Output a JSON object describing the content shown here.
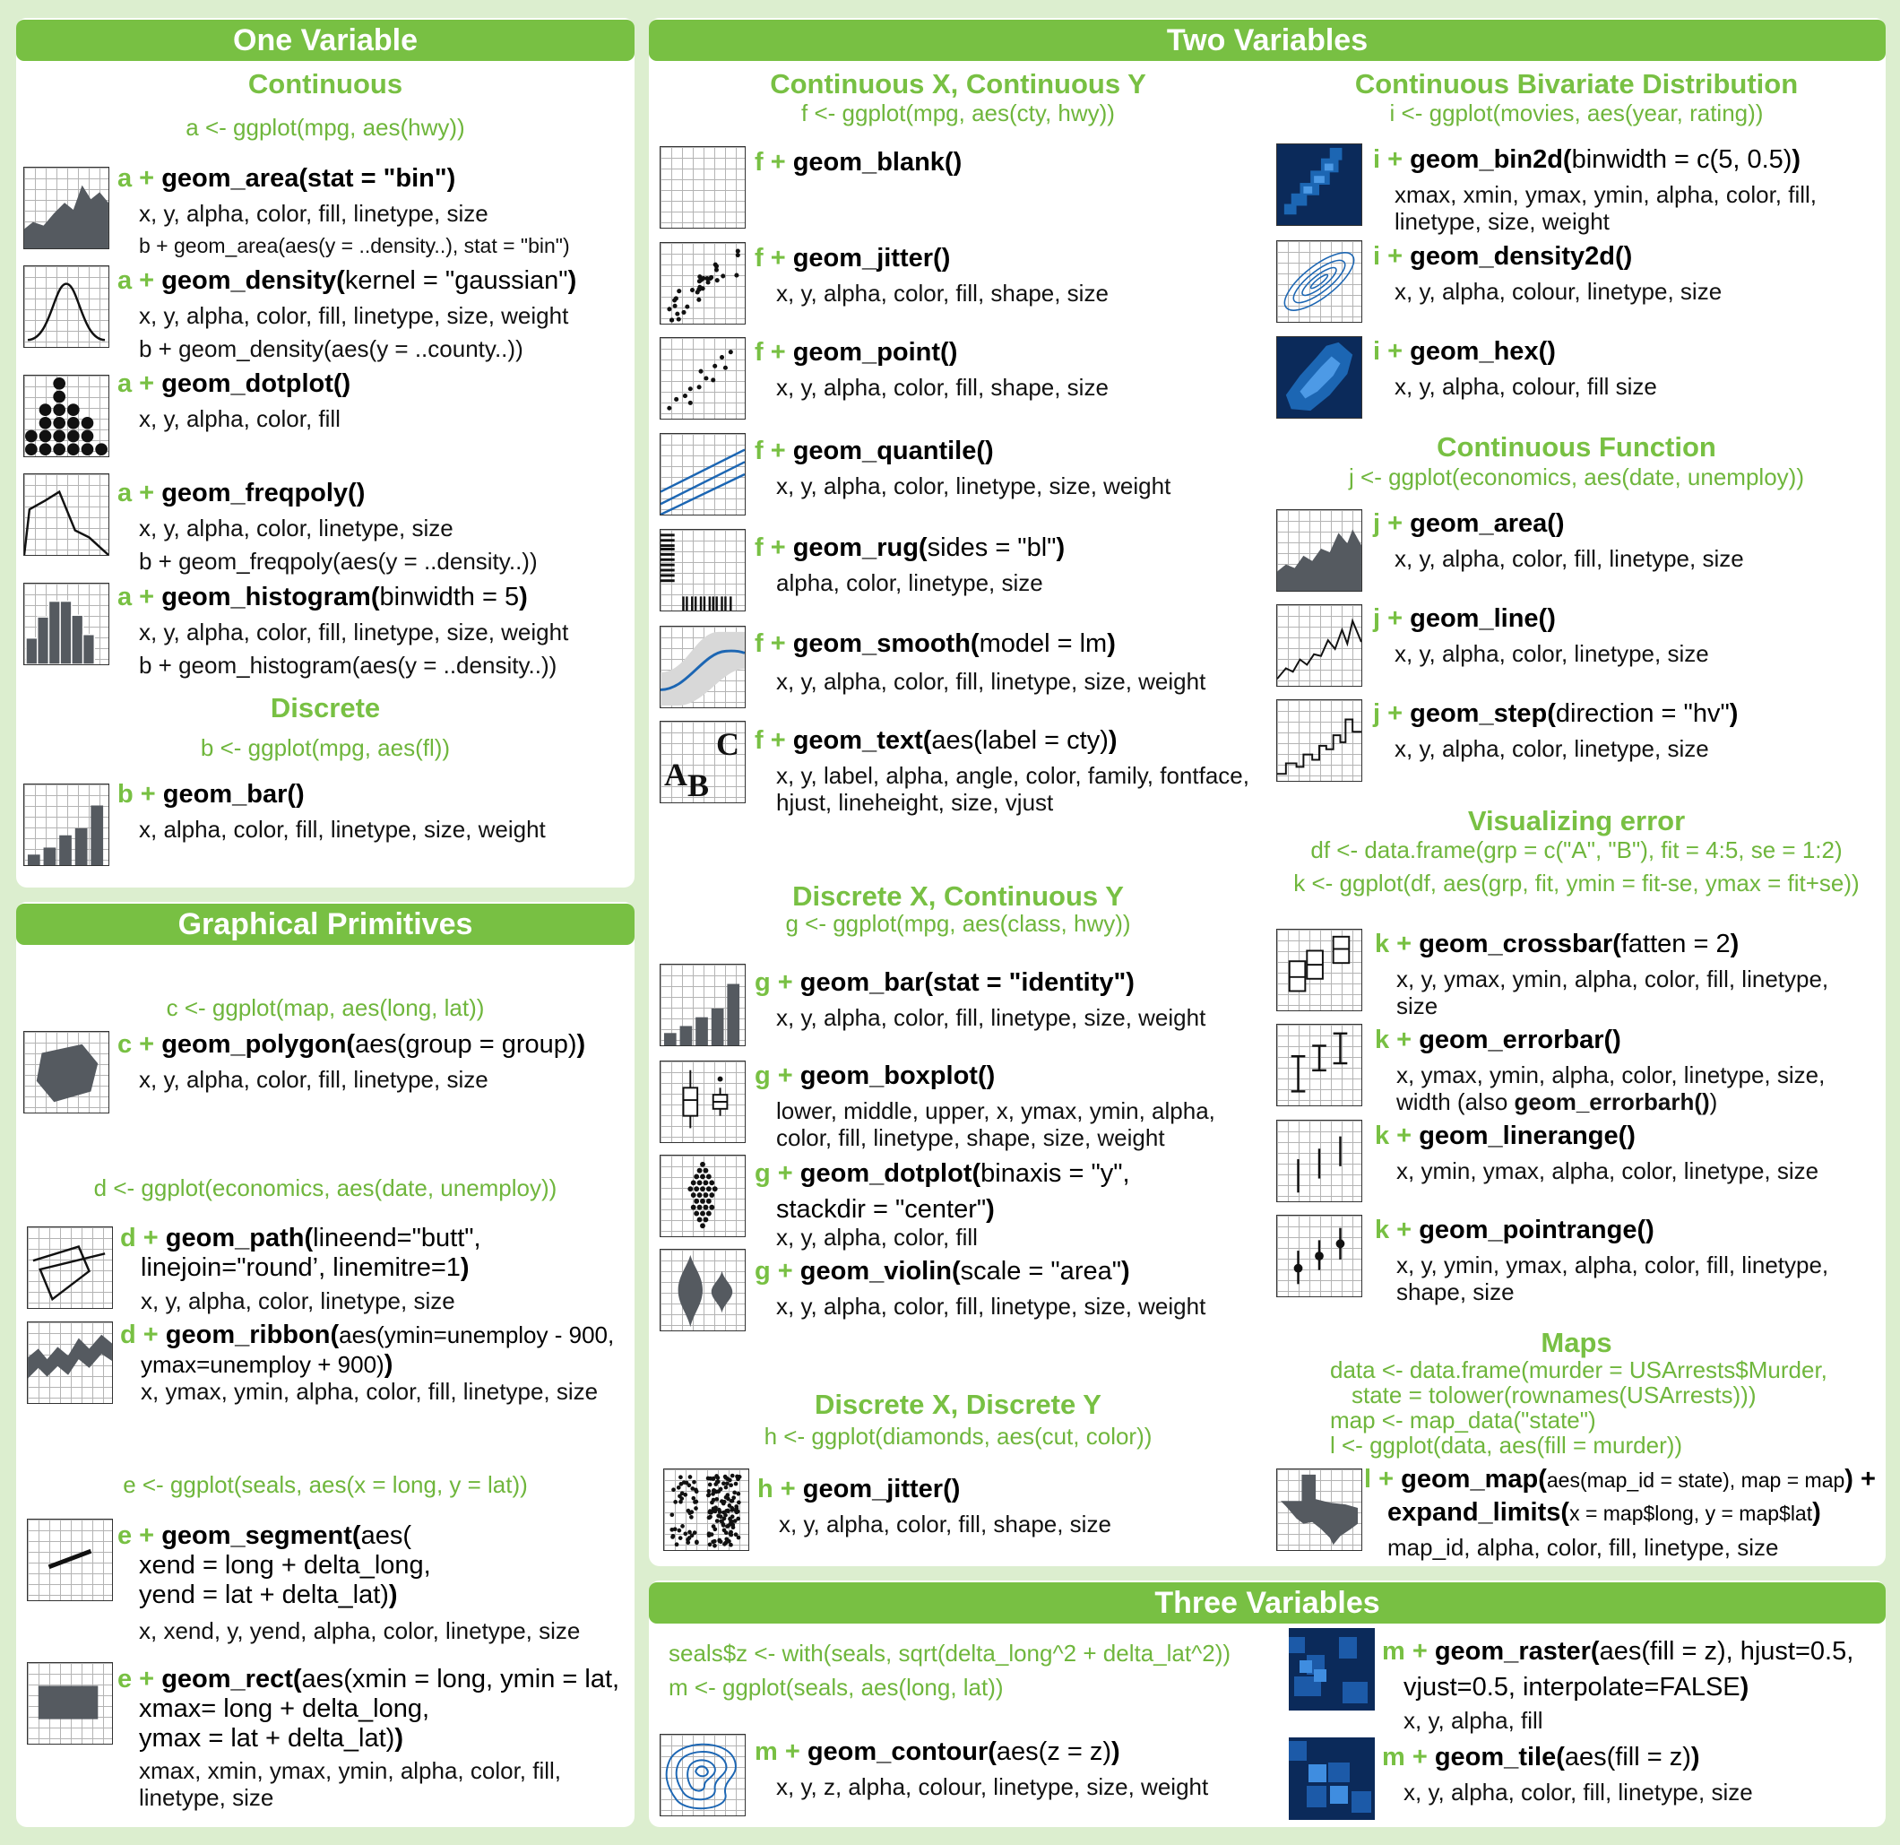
{
  "headers": {
    "one": "One Variable",
    "two": "Two Variables",
    "graph": "Graphical Primitives",
    "three": "Three Variables"
  },
  "one": {
    "cont_title": "Continuous",
    "cont_code": "a <- ggplot(mpg, aes(hwy))",
    "area": {
      "v": "a +",
      "f": "geom_area(stat = \"bin\")",
      "args": "x, y, alpha, color, fill, linetype, size",
      "ex": "b + geom_area(aes(y = ..density..), stat = \"bin\")"
    },
    "density": {
      "v": "a +",
      "f": "geom_density(",
      "a": "kernel = \"gaussian\"",
      "p": ")",
      "args": "x, y, alpha, color, fill, linetype, size, weight",
      "ex": "b + geom_density(aes(y = ..county..))"
    },
    "dotplot": {
      "v": "a +",
      "f": "geom_dotplot()",
      "args": "x, y, alpha, color, fill"
    },
    "freqpoly": {
      "v": "a +",
      "f": "geom_freqpoly()",
      "args": "x, y, alpha, color, linetype, size",
      "ex": "b + geom_freqpoly(aes(y = ..density..))"
    },
    "histogram": {
      "v": "a +",
      "f": "geom_histogram(",
      "a": "binwidth = 5",
      "p": ")",
      "args": "x, y, alpha, color, fill, linetype, size, weight",
      "ex": "b + geom_histogram(aes(y = ..density..))"
    },
    "disc_title": "Discrete",
    "disc_code": "b <- ggplot(mpg, aes(fl))",
    "bar": {
      "v": "b +",
      "f": "geom_bar()",
      "args": "x, alpha, color, fill, linetype, size, weight"
    }
  },
  "graph": {
    "c_code": "c <- ggplot(map, aes(long, lat))",
    "polygon": {
      "v": "c +",
      "f": "geom_polygon(",
      "a": "aes(group = group)",
      "p": ")",
      "args": "x, y, alpha, color, fill, linetype, size"
    },
    "d_code": "d <- ggplot(economics, aes(date, unemploy))",
    "path": {
      "v": "d +",
      "f": "geom_path(",
      "a": "lineend=\"butt\",",
      "a2": "linejoin=\"round’, linemitre=1",
      "p": ")",
      "args": "x, y, alpha, color, linetype, size"
    },
    "ribbon": {
      "v": "d +",
      "f": "geom_ribbon(",
      "a": "aes(ymin=unemploy - 900,",
      "a2": "ymax=unemploy + 900)",
      "p": ")",
      "args": "x, ymax, ymin, alpha, color, fill, linetype, size"
    },
    "e_code": "e <- ggplot(seals, aes(x = long, y = lat))",
    "segment": {
      "v": "e +",
      "f": "geom_segment(",
      "a": "aes(",
      "l2": "xend = long + delta_long,",
      "l3": "yend = lat + delta_lat)",
      "p": ")",
      "args": "x, xend, y, yend, alpha, color, linetype, size"
    },
    "rect": {
      "v": "e +",
      "f": "geom_rect(",
      "a": "aes(xmin = long, ymin = lat,",
      "l2": "xmax= long + delta_long,",
      "l3": "ymax = lat + delta_lat)",
      "p": ")",
      "args": "xmax, xmin, ymax, ymin, alpha, color, fill,",
      "args2": "linetype, size"
    }
  },
  "two": {
    "cc_title": "Continuous X, Continuous Y",
    "cc_code": "f <- ggplot(mpg, aes(cty, hwy))",
    "blank": {
      "v": "f +",
      "f": "geom_blank()"
    },
    "jitter": {
      "v": "f +",
      "f": "geom_jitter()",
      "args": "x, y, alpha, color, fill, shape, size"
    },
    "point": {
      "v": "f +",
      "f": "geom_point()",
      "args": "x, y, alpha, color, fill, shape, size"
    },
    "quantile": {
      "v": "f +",
      "f": "geom_quantile()",
      "args": "x, y, alpha, color, linetype, size, weight"
    },
    "rug": {
      "v": "f +",
      "f": "geom_rug(",
      "a": "sides = \"bl\"",
      "p": ")",
      "args": "alpha, color, linetype, size"
    },
    "smooth": {
      "v": "f +",
      "f": "geom_smooth(",
      "a": "model = lm",
      "p": ")",
      "args": "x, y, alpha, color, fill, linetype, size, weight"
    },
    "text": {
      "v": "f +",
      "f": "geom_text(",
      "a": "aes(label = cty)",
      "p": ")",
      "args": "x, y, label, alpha, angle, color, family, fontface,",
      "args2": "hjust, lineheight, size, vjust",
      "glyphs": [
        "A",
        "B",
        "C"
      ]
    },
    "dc_title": "Discrete X, Continuous Y",
    "dc_code": "g <- ggplot(mpg, aes(class, hwy))",
    "gbar": {
      "v": "g +",
      "f": "geom_bar(stat = \"identity\")",
      "args": "x, y, alpha, color, fill, linetype, size, weight"
    },
    "boxplot": {
      "v": "g +",
      "f": "geom_boxplot()",
      "args": "lower, middle, upper, x, ymax, ymin, alpha,",
      "args2": "color, fill, linetype, shape, size, weight"
    },
    "gdotplot": {
      "v": "g +",
      "f": "geom_dotplot(",
      "a": "binaxis = \"y\",",
      "l2": "stackdir = \"center\"",
      "p": ")",
      "args": "x, y, alpha, color, fill"
    },
    "violin": {
      "v": "g +",
      "f": "geom_violin(",
      "a": "scale = \"area\"",
      "p": ")",
      "args": "x, y, alpha, color, fill, linetype, size, weight"
    },
    "dd_title": "Discrete X, Discrete Y",
    "dd_code": "h <- ggplot(diamonds, aes(cut, color))",
    "hjitter": {
      "v": "h +",
      "f": "geom_jitter()",
      "args": "x, y, alpha, color, fill, shape, size"
    },
    "cbd_title": "Continuous Bivariate Distribution",
    "cbd_code": "i <- ggplot(movies, aes(year, rating))",
    "bin2d": {
      "v": "i +",
      "f": "geom_bin2d(",
      "a": "binwidth = c(5, 0.5)",
      "p": ")",
      "args": "xmax, xmin, ymax, ymin, alpha, color, fill,",
      "args2": "linetype, size, weight"
    },
    "density2d": {
      "v": "i +",
      "f": "geom_density2d()",
      "args": "x, y, alpha, colour, linetype, size"
    },
    "hex": {
      "v": "i +",
      "f": "geom_hex()",
      "args": "x, y, alpha, colour, fill size"
    },
    "cf_title": "Continuous Function",
    "cf_code": "j <- ggplot(economics, aes(date, unemploy))",
    "jarea": {
      "v": "j +",
      "f": "geom_area()",
      "args": "x, y, alpha, color, fill, linetype, size"
    },
    "jline": {
      "v": "j +",
      "f": "geom_line()",
      "args": "x, y, alpha, color, linetype, size"
    },
    "jstep": {
      "v": "j +",
      "f": "geom_step(",
      "a": "direction = \"hv\"",
      "p": ")",
      "args": "x, y, alpha, color, linetype, size"
    },
    "ve_title": "Visualizing error",
    "ve_code1": "df <- data.frame(grp = c(\"A\", \"B\"), fit = 4:5, se = 1:2)",
    "ve_code2": "k <- ggplot(df, aes(grp, fit, ymin = fit-se, ymax = fit+se))",
    "crossbar": {
      "v": "k +",
      "f": "geom_crossbar(",
      "a": "fatten = 2",
      "p": ")",
      "args": "x, y, ymax, ymin, alpha, color, fill, linetype,",
      "args2": "size"
    },
    "errorbar": {
      "v": "k +",
      "f": "geom_errorbar()",
      "args": "x, ymax, ymin, alpha, color, linetype, size,",
      "args2a": "width (also ",
      "args2b": "geom_errorbarh()",
      "args2c": ")"
    },
    "linerange": {
      "v": "k +",
      "f": "geom_linerange()",
      "args": "x, ymin, ymax, alpha, color, linetype, size"
    },
    "pointrange": {
      "v": "k +",
      "f": "geom_pointrange()",
      "args": "x, y, ymin, ymax, alpha, color, fill, linetype,",
      "args2": "shape, size"
    },
    "maps_title": "Maps",
    "maps_code1": "data <- data.frame(murder = USArrests$Murder,",
    "maps_code2": "state = tolower(rownames(USArrests)))",
    "maps_code3": "map <- map_data(\"state\")",
    "maps_code4": "l <- ggplot(data, aes(fill = murder))",
    "map": {
      "v": "l +",
      "f": "geom_map(",
      "a": "aes(map_id = state), map = map",
      "p": ") +",
      "f2": "expand_limits(",
      "a2": "x = map$long, y = map$lat",
      "p2": ")",
      "args": "map_id, alpha, color, fill, linetype, size"
    }
  },
  "three": {
    "code1": "seals$z <- with(seals, sqrt(delta_long^2 + delta_lat^2))",
    "code2": "m <- ggplot(seals, aes(long, lat))",
    "contour": {
      "v": "m +",
      "f": "geom_contour(",
      "a": "aes(z = z)",
      "p": ")",
      "args": "x, y, z, alpha, colour, linetype, size, weight"
    },
    "raster": {
      "v": "m +",
      "f": "geom_raster(",
      "a": "aes(fill = z), hjust=0.5,",
      "l2": "vjust=0.5, interpolate=FALSE",
      "p": ")",
      "args": "x, y, alpha, fill"
    },
    "tile": {
      "v": "m +",
      "f": "geom_tile(",
      "a": "aes(fill = z)",
      "p": ")",
      "args": "x, y, alpha, color, fill, linetype, size"
    }
  },
  "colors": {
    "accent": "#78c043",
    "bg": "#dceecf",
    "dark_fill": "#555a60",
    "blue": "#1c66b3",
    "navy": "#0b2a5a"
  }
}
